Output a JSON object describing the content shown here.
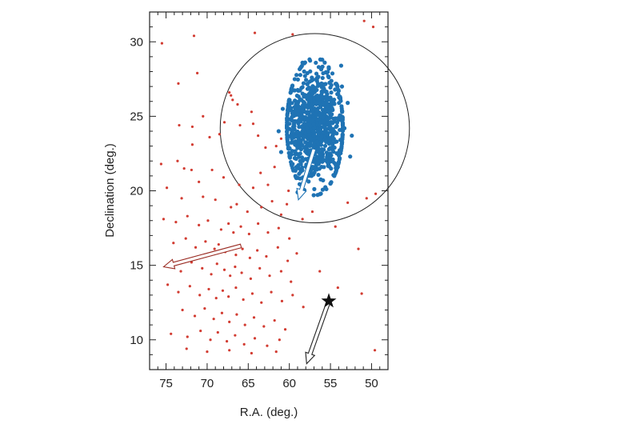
{
  "chart_data": {
    "type": "scatter",
    "title": "",
    "xlabel": "R.A. (deg.)",
    "ylabel": "Declination (deg.)",
    "xlim": [
      77,
      48
    ],
    "ylim": [
      8,
      32
    ],
    "x_ticks": [
      75,
      70,
      65,
      60,
      55,
      50
    ],
    "y_ticks": [
      10,
      15,
      20,
      25,
      30
    ],
    "x_tick_labels": [
      "75",
      "70",
      "65",
      "60",
      "55",
      "50"
    ],
    "y_tick_labels": [
      "10",
      "15",
      "20",
      "25",
      "30"
    ],
    "grid": false,
    "legend": "none",
    "series": [
      {
        "color": "#d23c32",
        "marker": "small-dot",
        "points": [
          [
            75.5,
            29.9
          ],
          [
            71.6,
            30.4
          ],
          [
            64.2,
            30.6
          ],
          [
            59.6,
            30.5
          ],
          [
            50.9,
            31.4
          ],
          [
            49.8,
            31.0
          ],
          [
            71.2,
            27.9
          ],
          [
            73.5,
            27.2
          ],
          [
            67.3,
            26.6
          ],
          [
            67.1,
            26.4
          ],
          [
            66.9,
            26.1
          ],
          [
            71.8,
            24.3
          ],
          [
            70.5,
            25.0
          ],
          [
            66.3,
            25.8
          ],
          [
            67.9,
            24.6
          ],
          [
            66.0,
            24.4
          ],
          [
            73.4,
            24.4
          ],
          [
            64.6,
            25.3
          ],
          [
            64.4,
            24.5
          ],
          [
            69.7,
            23.6
          ],
          [
            68.5,
            23.8
          ],
          [
            63.8,
            23.7
          ],
          [
            62.9,
            22.9
          ],
          [
            61.6,
            23.0
          ],
          [
            61.0,
            23.5
          ],
          [
            71.8,
            23.1
          ],
          [
            73.6,
            22.0
          ],
          [
            72.8,
            21.5
          ],
          [
            71.9,
            21.4
          ],
          [
            74.9,
            20.2
          ],
          [
            75.6,
            21.8
          ],
          [
            71.0,
            20.6
          ],
          [
            69.4,
            21.4
          ],
          [
            68.0,
            20.9
          ],
          [
            66.1,
            20.4
          ],
          [
            64.4,
            20.2
          ],
          [
            63.5,
            21.2
          ],
          [
            62.6,
            20.4
          ],
          [
            61.8,
            21.6
          ],
          [
            60.1,
            20.0
          ],
          [
            73.1,
            19.5
          ],
          [
            70.5,
            19.6
          ],
          [
            69.0,
            19.4
          ],
          [
            67.1,
            18.9
          ],
          [
            66.4,
            19.1
          ],
          [
            65.1,
            18.6
          ],
          [
            63.4,
            18.9
          ],
          [
            62.1,
            19.3
          ],
          [
            61.0,
            18.4
          ],
          [
            60.3,
            19.1
          ],
          [
            58.4,
            18.1
          ],
          [
            57.2,
            18.6
          ],
          [
            54.4,
            17.6
          ],
          [
            52.9,
            19.2
          ],
          [
            50.6,
            19.5
          ],
          [
            49.5,
            19.8
          ],
          [
            75.3,
            18.1
          ],
          [
            73.8,
            17.9
          ],
          [
            72.4,
            18.3
          ],
          [
            71.0,
            17.7
          ],
          [
            69.9,
            18.0
          ],
          [
            68.3,
            17.4
          ],
          [
            67.4,
            17.8
          ],
          [
            66.8,
            17.2
          ],
          [
            65.9,
            17.6
          ],
          [
            64.9,
            17.1
          ],
          [
            63.8,
            17.8
          ],
          [
            62.6,
            17.2
          ],
          [
            61.3,
            17.5
          ],
          [
            60.0,
            16.8
          ],
          [
            74.1,
            16.5
          ],
          [
            72.6,
            16.8
          ],
          [
            71.4,
            16.2
          ],
          [
            70.2,
            16.6
          ],
          [
            69.1,
            16.1
          ],
          [
            68.6,
            16.4
          ],
          [
            67.8,
            15.9
          ],
          [
            67.0,
            16.2
          ],
          [
            66.5,
            15.7
          ],
          [
            65.7,
            16.1
          ],
          [
            64.8,
            15.5
          ],
          [
            63.9,
            16.0
          ],
          [
            62.8,
            15.6
          ],
          [
            61.4,
            16.2
          ],
          [
            60.2,
            15.3
          ],
          [
            59.1,
            15.8
          ],
          [
            74.6,
            15.0
          ],
          [
            73.2,
            14.6
          ],
          [
            71.9,
            15.2
          ],
          [
            70.6,
            14.8
          ],
          [
            69.5,
            14.4
          ],
          [
            68.8,
            15.1
          ],
          [
            67.9,
            14.7
          ],
          [
            67.2,
            14.3
          ],
          [
            66.6,
            14.9
          ],
          [
            65.8,
            14.5
          ],
          [
            64.7,
            14.1
          ],
          [
            63.6,
            14.8
          ],
          [
            62.4,
            14.3
          ],
          [
            61.0,
            14.6
          ],
          [
            59.8,
            13.9
          ],
          [
            74.8,
            13.7
          ],
          [
            73.5,
            13.2
          ],
          [
            72.1,
            13.6
          ],
          [
            70.9,
            13.0
          ],
          [
            69.8,
            13.4
          ],
          [
            68.9,
            12.8
          ],
          [
            68.1,
            13.3
          ],
          [
            67.4,
            12.9
          ],
          [
            66.5,
            13.5
          ],
          [
            65.6,
            12.7
          ],
          [
            64.5,
            13.1
          ],
          [
            63.4,
            12.5
          ],
          [
            62.2,
            13.2
          ],
          [
            60.9,
            12.6
          ],
          [
            59.6,
            13.0
          ],
          [
            58.3,
            12.2
          ],
          [
            56.3,
            14.6
          ],
          [
            54.1,
            13.5
          ],
          [
            51.2,
            13.1
          ],
          [
            73.0,
            12.0
          ],
          [
            71.5,
            11.6
          ],
          [
            70.3,
            12.1
          ],
          [
            69.2,
            11.4
          ],
          [
            68.2,
            11.8
          ],
          [
            67.3,
            11.2
          ],
          [
            66.4,
            11.7
          ],
          [
            65.4,
            11.0
          ],
          [
            64.3,
            11.5
          ],
          [
            63.1,
            10.9
          ],
          [
            61.8,
            11.3
          ],
          [
            60.5,
            10.7
          ],
          [
            74.4,
            10.4
          ],
          [
            72.4,
            10.2
          ],
          [
            70.8,
            10.6
          ],
          [
            69.6,
            10.0
          ],
          [
            68.7,
            10.5
          ],
          [
            67.6,
            9.9
          ],
          [
            66.6,
            10.3
          ],
          [
            65.5,
            9.7
          ],
          [
            64.2,
            10.1
          ],
          [
            62.7,
            9.6
          ],
          [
            61.2,
            10.0
          ],
          [
            72.5,
            9.4
          ],
          [
            70.0,
            9.2
          ],
          [
            67.3,
            9.3
          ],
          [
            64.6,
            9.1
          ],
          [
            61.6,
            9.2
          ],
          [
            49.6,
            9.3
          ],
          [
            51.6,
            16.1
          ]
        ]
      },
      {
        "color": "#1f73b4",
        "marker": "large-dot",
        "center": [
          56.9,
          24.3
        ],
        "spread": [
          2.1,
          1.9
        ],
        "points": [
          [
            56.9,
            24.3
          ],
          [
            57.2,
            24.0
          ],
          [
            56.5,
            24.6
          ],
          [
            57.6,
            24.9
          ],
          [
            56.2,
            23.8
          ],
          [
            55.8,
            24.5
          ],
          [
            57.9,
            23.6
          ],
          [
            56.7,
            25.2
          ],
          [
            57.4,
            23.3
          ],
          [
            56.0,
            25.0
          ],
          [
            58.3,
            24.8
          ],
          [
            55.5,
            23.9
          ],
          [
            56.9,
            22.9
          ],
          [
            57.0,
            26.0
          ],
          [
            58.7,
            25.6
          ],
          [
            55.1,
            25.5
          ],
          [
            59.1,
            23.2
          ],
          [
            54.8,
            22.9
          ],
          [
            56.4,
            27.1
          ],
          [
            57.8,
            27.9
          ],
          [
            55.2,
            28.2
          ],
          [
            59.7,
            26.8
          ],
          [
            53.6,
            27.0
          ],
          [
            60.0,
            24.5
          ],
          [
            53.3,
            24.2
          ],
          [
            59.6,
            21.8
          ],
          [
            54.1,
            21.6
          ],
          [
            57.3,
            21.0
          ],
          [
            55.9,
            20.7
          ],
          [
            58.6,
            20.4
          ],
          [
            60.8,
            25.5
          ],
          [
            52.9,
            25.9
          ],
          [
            61.0,
            22.6
          ],
          [
            52.6,
            22.3
          ],
          [
            58.4,
            28.6
          ],
          [
            56.0,
            28.8
          ],
          [
            53.7,
            28.4
          ],
          [
            61.3,
            24.0
          ],
          [
            52.4,
            23.7
          ],
          [
            59.0,
            19.9
          ]
        ]
      }
    ],
    "annotations": [
      {
        "shape": "circle",
        "center": [
          56.9,
          24.2
        ],
        "radius_y": 6.35,
        "color": "#222222"
      },
      {
        "shape": "arrow",
        "from": [
          65.9,
          16.3
        ],
        "to": [
          75.3,
          14.9
        ],
        "color": "#9a2b22"
      },
      {
        "shape": "arrow",
        "from": [
          57.0,
          22.8
        ],
        "to": [
          58.9,
          19.4
        ],
        "color": "#1f73b4"
      },
      {
        "shape": "arrow",
        "from": [
          55.2,
          12.6
        ],
        "to": [
          57.9,
          8.4
        ],
        "color": "#222222"
      },
      {
        "shape": "star",
        "at": [
          55.2,
          12.6
        ],
        "color": "#111111"
      }
    ]
  }
}
